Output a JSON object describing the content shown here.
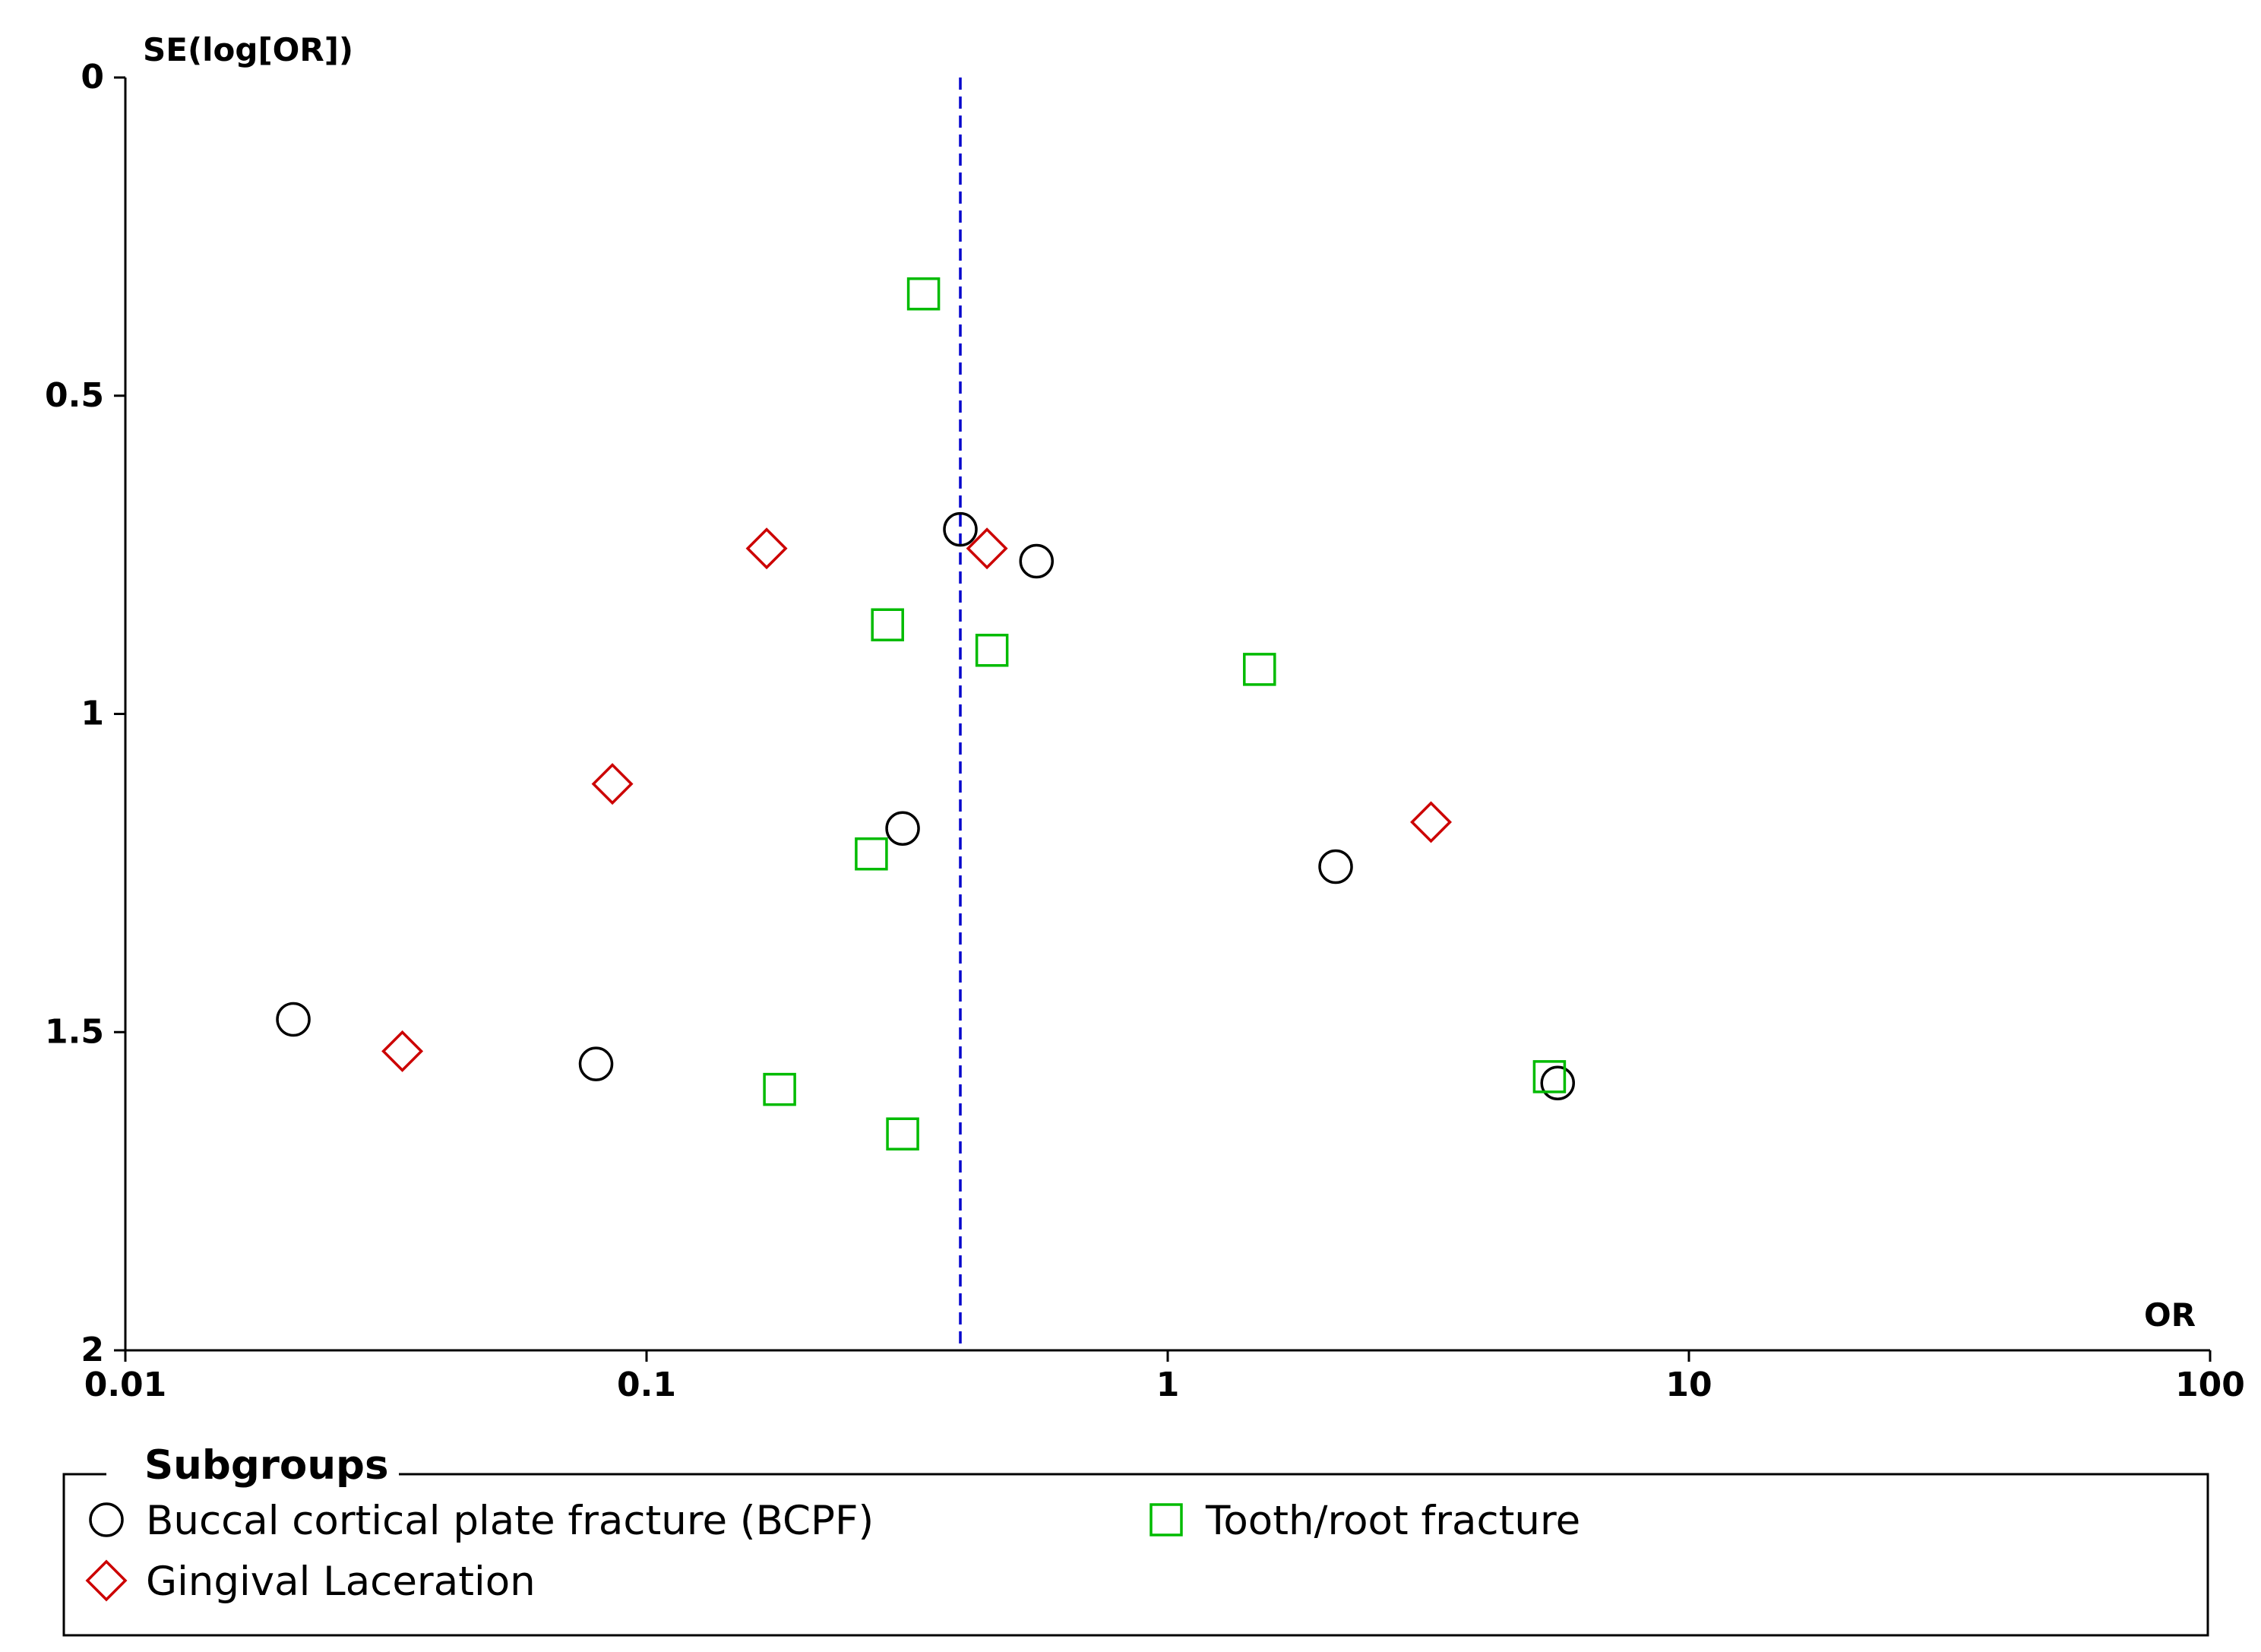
{
  "chart_data": {
    "type": "scatter",
    "subtype": "funnel-plot",
    "x_scale": "log",
    "xlim": [
      0.01,
      100
    ],
    "ylim": [
      0,
      2
    ],
    "y_reversed": true,
    "xlabel": "OR",
    "ylabel": "SE(log[OR])",
    "x_ticks": [
      "0.01",
      "0.1",
      "1",
      "10",
      "100"
    ],
    "x_tick_values": [
      0.01,
      0.1,
      1,
      10,
      100
    ],
    "y_ticks": [
      "0",
      "0.5",
      "1",
      "1.5",
      "2"
    ],
    "y_tick_values": [
      0,
      0.5,
      1,
      1.5,
      2
    ],
    "reference_line": {
      "x": 0.4,
      "style": "dashed",
      "color": "#0000cc"
    },
    "series": [
      {
        "name": "Buccal cortical plate fracture (BCPF)",
        "marker": "circle",
        "color": "#000000",
        "points": [
          {
            "x": 0.4,
            "y": 0.71
          },
          {
            "x": 0.56,
            "y": 0.76
          },
          {
            "x": 0.31,
            "y": 1.18
          },
          {
            "x": 2.1,
            "y": 1.24
          },
          {
            "x": 0.021,
            "y": 1.48
          },
          {
            "x": 0.08,
            "y": 1.55
          },
          {
            "x": 5.6,
            "y": 1.58
          }
        ]
      },
      {
        "name": "Gingival Laceration",
        "marker": "diamond",
        "color": "#cc0000",
        "points": [
          {
            "x": 0.17,
            "y": 0.74
          },
          {
            "x": 0.45,
            "y": 0.74
          },
          {
            "x": 0.086,
            "y": 1.11
          },
          {
            "x": 3.2,
            "y": 1.17
          },
          {
            "x": 0.034,
            "y": 1.53
          }
        ]
      },
      {
        "name": "Tooth/root fracture",
        "marker": "square",
        "color": "#00bb00",
        "points": [
          {
            "x": 0.34,
            "y": 0.34
          },
          {
            "x": 0.29,
            "y": 0.86
          },
          {
            "x": 0.46,
            "y": 0.9
          },
          {
            "x": 1.5,
            "y": 0.93
          },
          {
            "x": 0.27,
            "y": 1.22
          },
          {
            "x": 5.4,
            "y": 1.57
          },
          {
            "x": 0.18,
            "y": 1.59
          },
          {
            "x": 0.31,
            "y": 1.66
          }
        ]
      }
    ],
    "legend": {
      "title": "Subgroups",
      "placement": "bottom"
    }
  }
}
